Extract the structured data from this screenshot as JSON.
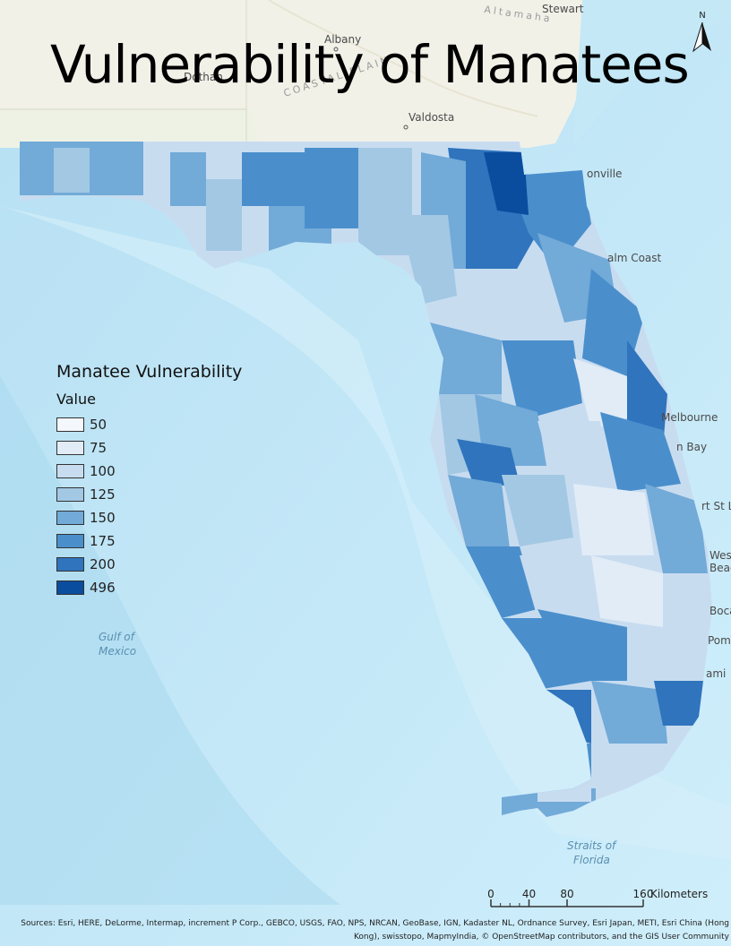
{
  "title": "Vulnerability of Manatees",
  "legend": {
    "title": "Manatee Vulnerability",
    "field": "Value",
    "items": [
      {
        "label": "50",
        "color": "#f4f8fc"
      },
      {
        "label": "75",
        "color": "#e1ecf7"
      },
      {
        "label": "100",
        "color": "#c8dcf0"
      },
      {
        "label": "125",
        "color": "#a3c8e4"
      },
      {
        "label": "150",
        "color": "#72aad8"
      },
      {
        "label": "175",
        "color": "#4a8fcc"
      },
      {
        "label": "200",
        "color": "#2f74bd"
      },
      {
        "label": "496",
        "color": "#0a4d9e"
      }
    ]
  },
  "places": {
    "albany": "Albany",
    "dothan": "Dothan",
    "valdosta": "Valdosta",
    "stewart": "Stewart",
    "alamaha": "Altamaha",
    "coastal_plain": "COASTAL PLAIN",
    "jacksonville": "onville",
    "palm_coast": "alm Coast",
    "melbourne": "Melbourne",
    "palm_bay": "n Bay",
    "port_st_lucie": "rt St L",
    "west_palm_1": "Wes",
    "west_palm_2": "Beac",
    "boca": "Boca",
    "pompano": "Pom",
    "miami": "ami"
  },
  "water": {
    "gulf_1": "Gulf of",
    "gulf_2": "Mexico",
    "straits_1": "Straits of",
    "straits_2": "Florida"
  },
  "north_arrow": {
    "letter": "N"
  },
  "scale": {
    "ticks": [
      "0",
      "40",
      "80",
      "160"
    ],
    "unit": "Kilometers"
  },
  "attribution": {
    "line1": "Sources: Esri, HERE, DeLorme, Intermap, increment P Corp., GEBCO, USGS, FAO, NPS, NRCAN, GeoBase, IGN, Kadaster NL, Ordnance Survey, Esri Japan, METI, Esri China (Hong",
    "line2": "Kong), swisstopo, MapmyIndia, © OpenStreetMap contributors, and the GIS User Community"
  },
  "colors": {
    "ocean": "#bfe6f6",
    "land_basemap": "#f2f1e8",
    "shelf": "#d6f0fa"
  }
}
